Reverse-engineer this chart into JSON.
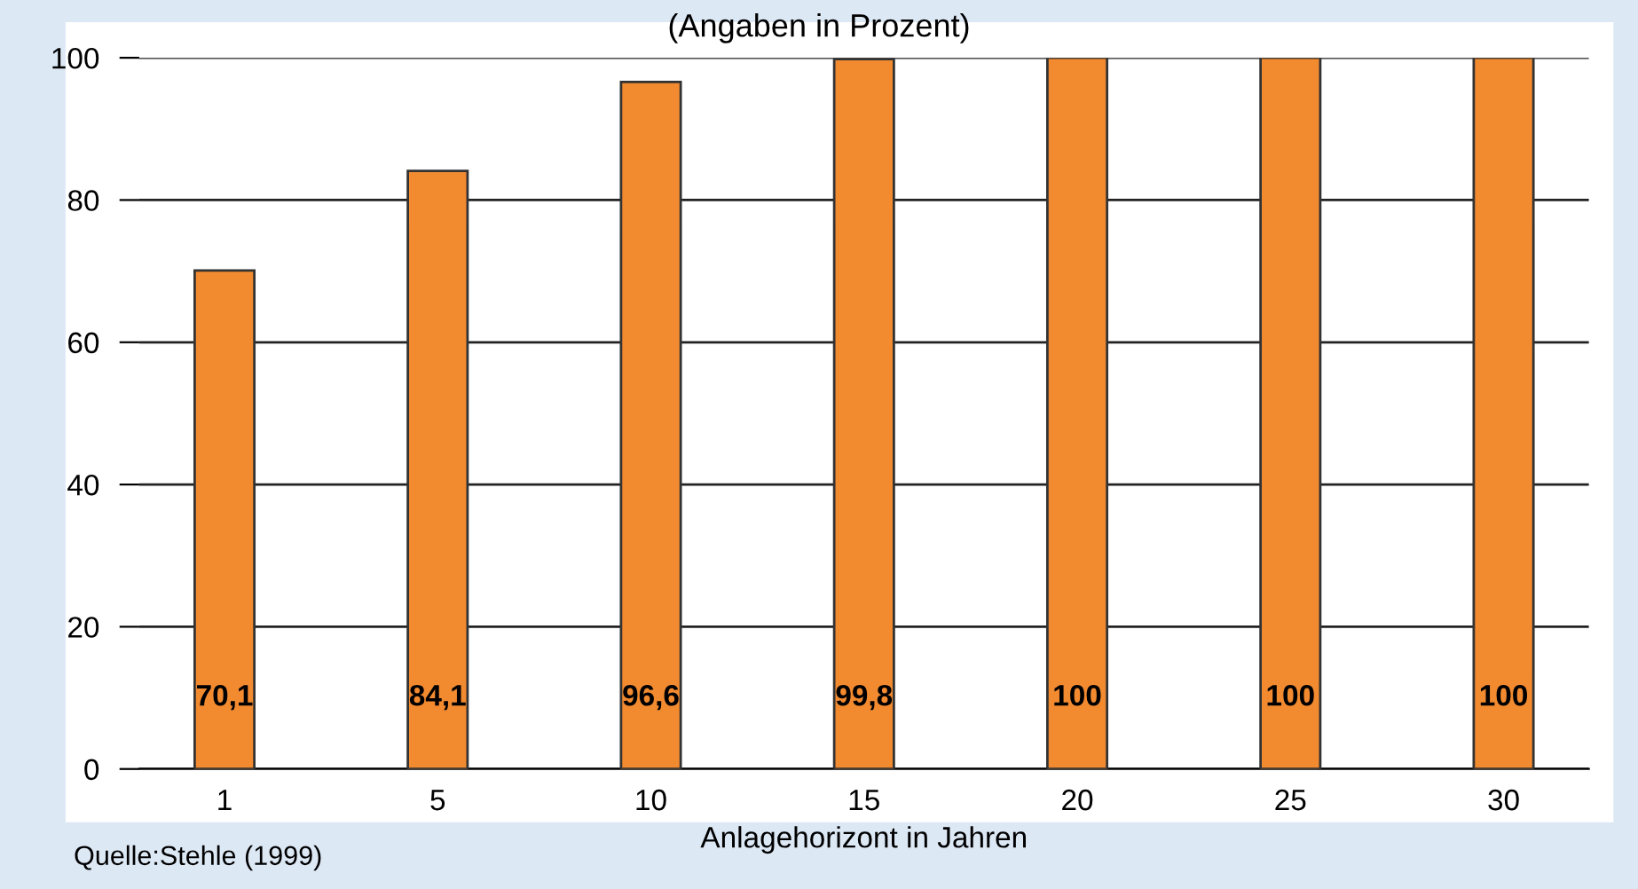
{
  "chart_data": {
    "type": "bar",
    "title": "(Angaben in Prozent)",
    "categories": [
      "1",
      "5",
      "10",
      "15",
      "20",
      "25",
      "30"
    ],
    "values": [
      70.1,
      84.1,
      96.6,
      99.8,
      100,
      100,
      100
    ],
    "value_labels": [
      "70,1",
      "84,1",
      "96,6",
      "99,8",
      "100",
      "100",
      "100"
    ],
    "color": "#f28a30",
    "xlabel": "Anlagehorizont in Jahren",
    "ylim": [
      0,
      100
    ],
    "yticks": [
      0,
      20,
      40,
      60,
      80,
      100
    ],
    "grid": "y",
    "annotations": [
      "Quelle:Stehle (1999)"
    ]
  }
}
